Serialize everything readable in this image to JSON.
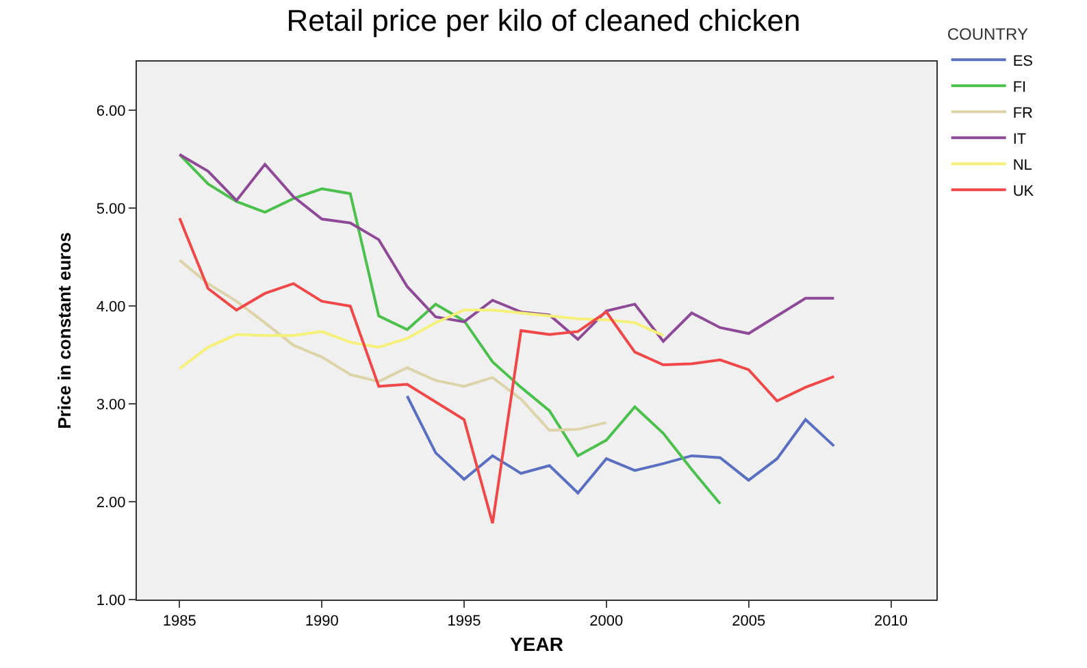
{
  "chart_data": {
    "type": "line",
    "title": "Retail price per kilo of cleaned chicken",
    "xlabel": "YEAR",
    "ylabel": "Price in constant euros",
    "legend_title": "COUNTRY",
    "x": [
      1985,
      1986,
      1987,
      1988,
      1989,
      1990,
      1991,
      1992,
      1993,
      1994,
      1995,
      1996,
      1997,
      1998,
      1999,
      2000,
      2001,
      2002,
      2003,
      2004,
      2005,
      2006,
      2007,
      2008
    ],
    "series": [
      {
        "name": "ES",
        "color": "#5a6fc0",
        "values": [
          null,
          null,
          null,
          null,
          null,
          null,
          null,
          null,
          3.08,
          2.5,
          2.23,
          2.47,
          2.29,
          2.37,
          2.09,
          2.44,
          2.32,
          2.39,
          2.47,
          2.45,
          2.22,
          2.44,
          2.84,
          2.57
        ]
      },
      {
        "name": "FI",
        "color": "#4cc04c",
        "values": [
          5.55,
          5.25,
          5.07,
          4.96,
          5.1,
          5.2,
          5.15,
          3.9,
          3.76,
          4.02,
          3.85,
          3.43,
          3.17,
          2.93,
          2.47,
          2.63,
          2.97,
          2.7,
          2.33,
          1.98,
          null,
          null,
          null,
          null
        ]
      },
      {
        "name": "FR",
        "color": "#dcd3a8",
        "values": [
          4.47,
          4.23,
          4.05,
          3.83,
          3.6,
          3.48,
          3.3,
          3.23,
          3.37,
          3.24,
          3.18,
          3.27,
          3.05,
          2.73,
          2.74,
          2.81,
          null,
          null,
          null,
          null,
          null,
          null,
          null,
          null
        ]
      },
      {
        "name": "IT",
        "color": "#8e4a96",
        "values": [
          5.55,
          5.38,
          5.08,
          5.45,
          5.12,
          4.89,
          4.85,
          4.68,
          4.2,
          3.89,
          3.84,
          4.06,
          3.94,
          3.91,
          3.66,
          3.95,
          4.02,
          3.64,
          3.93,
          3.78,
          3.72,
          3.9,
          4.08,
          4.08
        ]
      },
      {
        "name": "NL",
        "color": "#f5f07a",
        "values": [
          3.36,
          3.58,
          3.71,
          3.7,
          3.7,
          3.74,
          3.63,
          3.58,
          3.67,
          3.83,
          3.96,
          3.96,
          3.93,
          3.9,
          3.87,
          3.86,
          3.83,
          3.7,
          null,
          null,
          null,
          null,
          null,
          null
        ]
      },
      {
        "name": "UK",
        "color": "#f04848",
        "values": [
          4.9,
          4.18,
          3.96,
          4.13,
          4.23,
          4.05,
          4.0,
          3.18,
          3.2,
          3.02,
          2.84,
          1.78,
          3.75,
          3.71,
          3.74,
          3.94,
          3.53,
          3.4,
          3.41,
          3.45,
          3.35,
          3.03,
          3.17,
          3.28
        ]
      }
    ],
    "xlim": [
      1983.5,
      2011.6
    ],
    "ylim": [
      1.0,
      6.5
    ],
    "xticks": [
      1985,
      1990,
      1995,
      2000,
      2005,
      2010
    ],
    "yticks": [
      {
        "value": 1,
        "label": "1.00"
      },
      {
        "value": 2,
        "label": "2.00"
      },
      {
        "value": 3,
        "label": "3.00"
      },
      {
        "value": 4,
        "label": "4.00"
      },
      {
        "value": 5,
        "label": "5.00"
      },
      {
        "value": 6,
        "label": "6.00"
      }
    ],
    "grid": false,
    "legend": "top right",
    "marker": "none",
    "line_style": "solid"
  }
}
